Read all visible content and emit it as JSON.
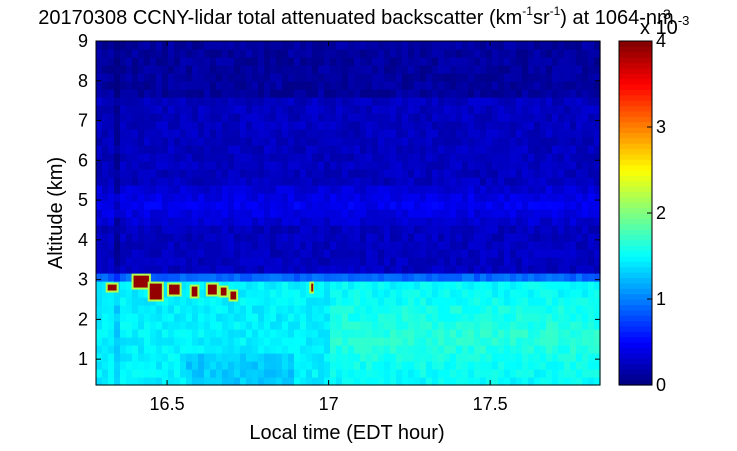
{
  "chart_data": {
    "type": "heatmap",
    "title": {
      "prefix": "20170308 CCNY-lidar total attenuated backscatter (km",
      "sup1": "-1",
      "mid": "sr",
      "sup2": "-1",
      "suffix": ") at 1064-nm"
    },
    "xlabel": "Local time (EDT hour)",
    "ylabel": "Altitude (km)",
    "xlim": [
      16.28,
      17.84
    ],
    "ylim": [
      0.35,
      9.0
    ],
    "x_ticks": [
      16.5,
      17,
      17.5
    ],
    "x_tick_labels": [
      "16.5",
      "17",
      "17.5"
    ],
    "y_ticks": [
      1,
      2,
      3,
      4,
      5,
      6,
      7,
      8,
      9
    ],
    "y_tick_labels": [
      "1",
      "2",
      "3",
      "4",
      "5",
      "6",
      "7",
      "8",
      "9"
    ],
    "colorbar": {
      "colormap": "jet",
      "clim": [
        0,
        4
      ],
      "ticks": [
        0,
        1,
        2,
        3,
        4
      ],
      "tick_labels": [
        "0",
        "1",
        "2",
        "3",
        "4"
      ],
      "exponent_label": "x 10",
      "exponent": "-3",
      "unit_marker": "3"
    },
    "field_features": {
      "boundary_layer_top_km": 2.9,
      "boundary_layer_value": 1.45,
      "upper_layer_km": 4.9,
      "upper_layer_value": 0.45,
      "free_troposphere_value": 0.25,
      "clear_air_top_value": 0.12,
      "clouds": [
        {
          "x": 16.31,
          "y": 2.8,
          "w": 0.04,
          "h": 0.25
        },
        {
          "x": 16.39,
          "y": 2.95,
          "w": 0.06,
          "h": 0.4
        },
        {
          "x": 16.44,
          "y": 2.7,
          "w": 0.05,
          "h": 0.5
        },
        {
          "x": 16.5,
          "y": 2.75,
          "w": 0.045,
          "h": 0.35
        },
        {
          "x": 16.57,
          "y": 2.7,
          "w": 0.03,
          "h": 0.35
        },
        {
          "x": 16.62,
          "y": 2.75,
          "w": 0.04,
          "h": 0.35
        },
        {
          "x": 16.66,
          "y": 2.7,
          "w": 0.03,
          "h": 0.3
        },
        {
          "x": 16.69,
          "y": 2.6,
          "w": 0.03,
          "h": 0.3
        },
        {
          "x": 16.94,
          "y": 2.8,
          "w": 0.015,
          "h": 0.3
        }
      ]
    }
  }
}
